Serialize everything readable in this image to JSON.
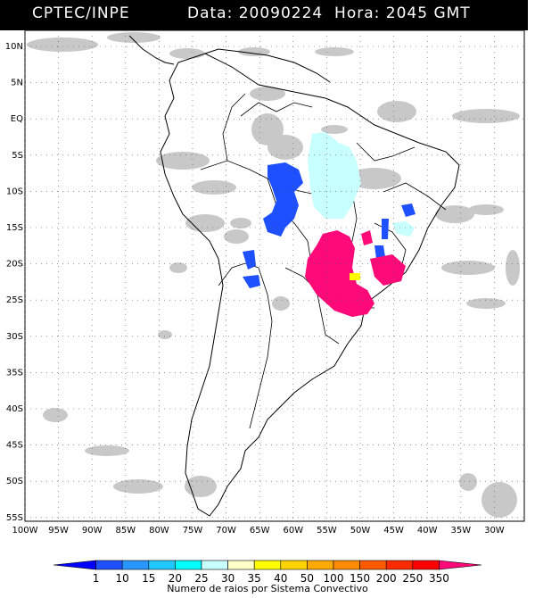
{
  "header": {
    "source": "CPTEC/INPE",
    "datetime": "Data: 20090224  Hora: 2045 GMT"
  },
  "lat_labels": [
    "10N",
    "5N",
    "EQ",
    "5S",
    "10S",
    "15S",
    "20S",
    "25S",
    "30S",
    "35S",
    "40S",
    "45S",
    "50S",
    "55S"
  ],
  "lon_labels": [
    "100W",
    "95W",
    "90W",
    "85W",
    "80W",
    "75W",
    "70W",
    "65W",
    "60W",
    "55W",
    "50W",
    "45W",
    "40W",
    "35W",
    "30W"
  ],
  "colorbar": {
    "labels": [
      "1",
      "10",
      "15",
      "20",
      "25",
      "30",
      "35",
      "40",
      "50",
      "100",
      "150",
      "200",
      "250",
      "350"
    ],
    "colors": [
      "#0000ff",
      "#1e50ff",
      "#2896ff",
      "#1ec8ff",
      "#00ffff",
      "#c8ffff",
      "#ffffc8",
      "#ffff00",
      "#ffd200",
      "#ffaa00",
      "#ff8c00",
      "#ff5a00",
      "#ff2a00",
      "#ff0000",
      "#ff0a78"
    ],
    "caption": "Numero de raios por Sistema Convectivo"
  },
  "legend_colors": {
    "cloud": "#c3c3c3",
    "blue": "#1e50ff",
    "cyan": "#c8ffff",
    "magenta": "#ff0a78",
    "yellow": "#ffff00"
  }
}
